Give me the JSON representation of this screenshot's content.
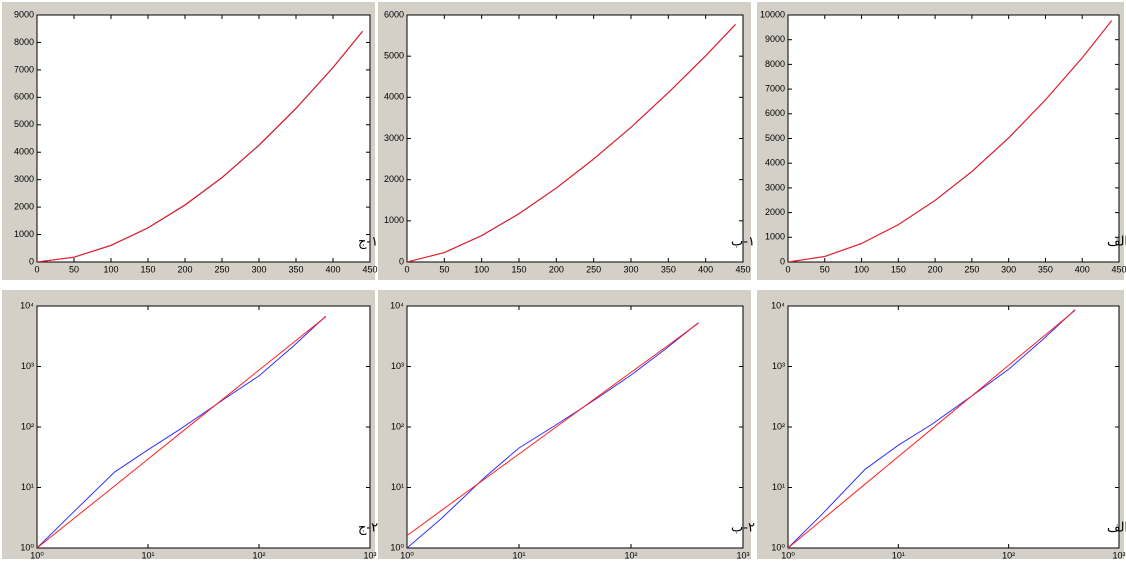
{
  "chart_data": [
    {
      "type": "line",
      "annotation": "۱-ج",
      "x": [
        0,
        50,
        100,
        150,
        200,
        250,
        300,
        350,
        400,
        440
      ],
      "xlim": [
        0,
        450
      ],
      "xticks": [
        0,
        50,
        100,
        150,
        200,
        250,
        300,
        350,
        400,
        450
      ],
      "ylim": [
        0,
        9000
      ],
      "yticks": [
        0,
        1000,
        2000,
        3000,
        4000,
        5000,
        6000,
        7000,
        8000,
        9000
      ],
      "series": [
        {
          "color": "#1a1a80",
          "values": [
            0,
            175,
            600,
            1240,
            2070,
            3070,
            4250,
            5590,
            7080,
            8400
          ]
        },
        {
          "color": "#ff2020",
          "values": [
            0,
            179,
            610,
            1251,
            2084,
            3084,
            4264,
            5606,
            7093,
            8413
          ]
        }
      ]
    },
    {
      "type": "line",
      "annotation": "۱-ب",
      "x": [
        0,
        50,
        100,
        150,
        200,
        250,
        300,
        350,
        400,
        440
      ],
      "xlim": [
        0,
        450
      ],
      "xticks": [
        0,
        50,
        100,
        150,
        200,
        250,
        300,
        350,
        400,
        450
      ],
      "ylim": [
        0,
        6000
      ],
      "yticks": [
        0,
        1000,
        2000,
        3000,
        4000,
        5000,
        6000
      ],
      "series": [
        {
          "color": "#1a1a80",
          "values": [
            0,
            228,
            640,
            1170,
            1795,
            2500,
            3270,
            4110,
            5005,
            5770
          ]
        },
        {
          "color": "#ff2020",
          "values": [
            0,
            231,
            645,
            1176,
            1800,
            2505,
            3275,
            4118,
            5013,
            5776
          ]
        }
      ]
    },
    {
      "type": "line",
      "annotation": "۱-الف",
      "x": [
        0,
        50,
        100,
        150,
        200,
        250,
        300,
        350,
        400,
        440
      ],
      "xlim": [
        0,
        450
      ],
      "xticks": [
        0,
        50,
        100,
        150,
        200,
        250,
        300,
        350,
        400,
        450
      ],
      "ylim": [
        0,
        10000
      ],
      "yticks": [
        0,
        1000,
        2000,
        3000,
        4000,
        5000,
        6000,
        7000,
        8000,
        9000,
        10000
      ],
      "series": [
        {
          "color": "#1a1a80",
          "values": [
            0,
            222,
            748,
            1510,
            2490,
            3660,
            5020,
            6560,
            8260,
            9770
          ]
        },
        {
          "color": "#ff2020",
          "values": [
            0,
            227,
            753,
            1518,
            2500,
            3667,
            5032,
            6569,
            8270,
            9777
          ]
        }
      ]
    },
    {
      "type": "line",
      "annotation": "۲-ج",
      "xscale": "log",
      "yscale": "log",
      "x": [
        1,
        2,
        5,
        10,
        20,
        50,
        100,
        200,
        400
      ],
      "xlim": [
        1,
        1000
      ],
      "xticks": [
        {
          "value": 1,
          "label": "10⁰"
        },
        {
          "value": 10,
          "label": "10¹"
        },
        {
          "value": 100,
          "label": "10²"
        },
        {
          "value": 1000,
          "label": "10³"
        }
      ],
      "ylim": [
        1,
        10000
      ],
      "yticks": [
        {
          "value": 1,
          "label": "10⁰"
        },
        {
          "value": 10,
          "label": "10¹"
        },
        {
          "value": 100,
          "label": "10²"
        },
        {
          "value": 1000,
          "label": "10³"
        },
        {
          "value": 10000,
          "label": "10⁴"
        }
      ],
      "series": [
        {
          "color": "#3030ff",
          "values": [
            1,
            3.5,
            18,
            42,
            95,
            300,
            700,
            2100,
            6800
          ]
        },
        {
          "color": "#ff2020",
          "values": [
            1,
            2.77,
            10.6,
            29.5,
            81.7,
            314,
            871,
            2410,
            6690
          ]
        }
      ]
    },
    {
      "type": "line",
      "annotation": "۲-ب",
      "xscale": "log",
      "yscale": "log",
      "x": [
        1,
        2,
        5,
        10,
        20,
        50,
        100,
        200,
        400
      ],
      "xlim": [
        1,
        1000
      ],
      "xticks": [
        {
          "value": 1,
          "label": "10⁰"
        },
        {
          "value": 10,
          "label": "10¹"
        },
        {
          "value": 100,
          "label": "10²"
        },
        {
          "value": 1000,
          "label": "10³"
        }
      ],
      "ylim": [
        1,
        10000
      ],
      "yticks": [
        {
          "value": 1,
          "label": "10⁰"
        },
        {
          "value": 10,
          "label": "10¹"
        },
        {
          "value": 100,
          "label": "10²"
        },
        {
          "value": 1000,
          "label": "10³"
        },
        {
          "value": 10000,
          "label": "10⁴"
        }
      ],
      "series": [
        {
          "color": "#3030ff",
          "values": [
            1,
            3,
            15,
            45,
            100,
            300,
            720,
            1900,
            5300
          ]
        },
        {
          "color": "#ff2020",
          "values": [
            1.6,
            4.1,
            14.1,
            35.8,
            91,
            314,
            800,
            2030,
            5220
          ]
        }
      ]
    },
    {
      "type": "line",
      "annotation": "۲-الف",
      "xscale": "log",
      "yscale": "log",
      "x": [
        1,
        2,
        5,
        10,
        20,
        50,
        100,
        200,
        400
      ],
      "xlim": [
        1,
        1000
      ],
      "xticks": [
        {
          "value": 1,
          "label": "10⁰"
        },
        {
          "value": 10,
          "label": "10¹"
        },
        {
          "value": 100,
          "label": "10²"
        },
        {
          "value": 1000,
          "label": "10³"
        }
      ],
      "ylim": [
        1,
        10000
      ],
      "yticks": [
        {
          "value": 1,
          "label": "10⁰"
        },
        {
          "value": 10,
          "label": "10¹"
        },
        {
          "value": 100,
          "label": "10²"
        },
        {
          "value": 1000,
          "label": "10³"
        },
        {
          "value": 10000,
          "label": "10⁴"
        }
      ],
      "series": [
        {
          "color": "#3030ff",
          "values": [
            1,
            3.5,
            20,
            50,
            110,
            360,
            900,
            2700,
            8700
          ]
        },
        {
          "color": "#ff2020",
          "values": [
            1,
            2.85,
            11.4,
            32.4,
            92,
            367,
            1047,
            2990,
            8500
          ]
        }
      ]
    }
  ]
}
